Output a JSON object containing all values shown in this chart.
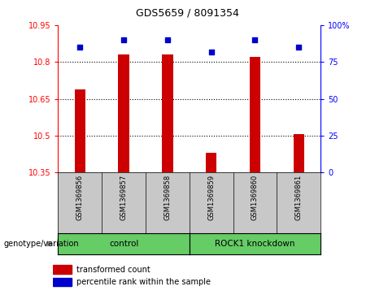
{
  "title": "GDS5659 / 8091354",
  "samples": [
    "GSM1369856",
    "GSM1369857",
    "GSM1369858",
    "GSM1369859",
    "GSM1369860",
    "GSM1369861"
  ],
  "transformed_counts": [
    10.69,
    10.83,
    10.83,
    10.43,
    10.82,
    10.505
  ],
  "percentile_ranks": [
    85,
    90,
    90,
    82,
    90,
    85
  ],
  "ylim_left": [
    10.35,
    10.95
  ],
  "ylim_right": [
    0,
    100
  ],
  "yticks_left": [
    10.35,
    10.5,
    10.65,
    10.8,
    10.95
  ],
  "yticks_right": [
    0,
    25,
    50,
    75,
    100
  ],
  "ytick_labels_left": [
    "10.35",
    "10.5",
    "10.65",
    "10.8",
    "10.95"
  ],
  "ytick_labels_right": [
    "0",
    "25",
    "50",
    "75",
    "100%"
  ],
  "bar_color": "#CC0000",
  "dot_color": "#0000CC",
  "bg_color": "#C8C8C8",
  "green_color": "#66CC66",
  "plot_bg": "#FFFFFF",
  "legend_label_bar": "transformed count",
  "legend_label_dot": "percentile rank within the sample",
  "genotype_label": "genotype/variation",
  "group_label_control": "control",
  "group_label_knockdown": "ROCK1 knockdown",
  "grid_lines": [
    10.5,
    10.65,
    10.8
  ]
}
